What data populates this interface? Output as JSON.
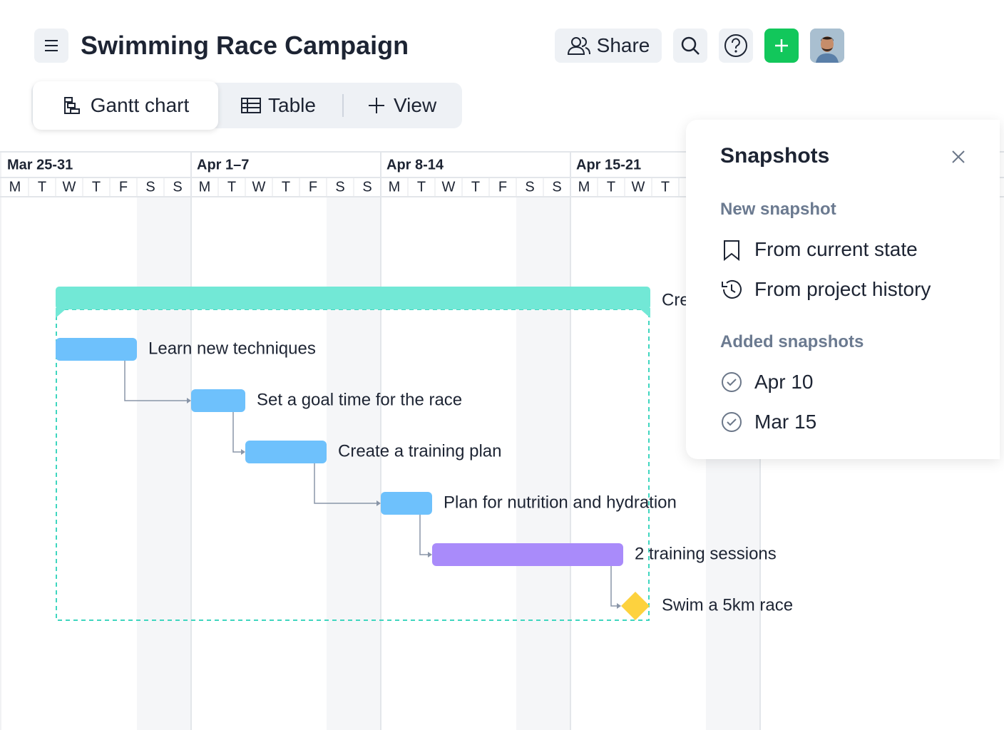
{
  "header": {
    "title": "Swimming Race Campaign",
    "share": "Share"
  },
  "tabs": [
    "Gantt chart",
    "Table",
    "View"
  ],
  "timeline": {
    "weeks": [
      "Mar 25-31",
      "Apr 1–7",
      "Apr 8-14",
      "Apr 15-21"
    ],
    "days": [
      "M",
      "T",
      "W",
      "T",
      "F",
      "S",
      "S"
    ]
  },
  "group": {
    "label": "Cre"
  },
  "tasks": [
    "Learn new techniques",
    "Set a goal time for the race",
    "Create a training plan",
    "Plan for nutrition and hydration",
    "2 training sessions",
    "Swim a 5km race"
  ],
  "snapshots": {
    "title": "Snapshots",
    "new_heading": "New snapshot",
    "new_options": [
      "From current state",
      "From project history"
    ],
    "added_heading": "Added snapshots",
    "added": [
      "Apr 10",
      "Mar 15"
    ]
  }
}
